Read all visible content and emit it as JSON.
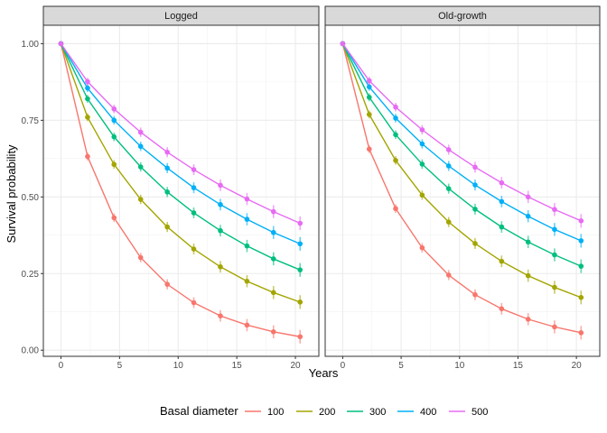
{
  "chart_data": {
    "type": "line",
    "xlabel": "Years",
    "ylabel": "Survival probability",
    "xlim": [
      -1.5,
      22
    ],
    "ylim": [
      -0.02,
      1.06
    ],
    "x_ticks": [
      0,
      5,
      10,
      15,
      20
    ],
    "x_tick_labels": [
      "0",
      "5",
      "10",
      "15",
      "20"
    ],
    "y_ticks": [
      0,
      0.25,
      0.5,
      0.75,
      1.0
    ],
    "y_tick_labels": [
      "0.00",
      "0.25",
      "0.50",
      "0.75",
      "1.00"
    ],
    "grid": true,
    "legend": {
      "title": "Basal diameter",
      "position": "bottom",
      "entries": [
        "100",
        "200",
        "300",
        "400",
        "500"
      ]
    },
    "colors": [
      "#F8766D",
      "#A3A500",
      "#00BF7D",
      "#00B0F6",
      "#E76BF3"
    ],
    "x": [
      0,
      2.27,
      4.53,
      6.8,
      9.07,
      11.33,
      13.6,
      15.87,
      18.13,
      20.4
    ],
    "panels": [
      {
        "title": "Logged",
        "series": [
          {
            "name": "100",
            "values": [
              1.0,
              0.632,
              0.432,
              0.302,
              0.215,
              0.155,
              0.112,
              0.082,
              0.06,
              0.044
            ]
          },
          {
            "name": "200",
            "values": [
              1.0,
              0.76,
              0.606,
              0.492,
              0.402,
              0.33,
              0.272,
              0.225,
              0.188,
              0.157
            ]
          },
          {
            "name": "300",
            "values": [
              1.0,
              0.82,
              0.696,
              0.598,
              0.516,
              0.448,
              0.39,
              0.34,
              0.298,
              0.262
            ]
          },
          {
            "name": "400",
            "values": [
              1.0,
              0.855,
              0.75,
              0.665,
              0.594,
              0.53,
              0.475,
              0.427,
              0.384,
              0.347
            ]
          },
          {
            "name": "500",
            "values": [
              1.0,
              0.876,
              0.787,
              0.711,
              0.646,
              0.589,
              0.538,
              0.493,
              0.452,
              0.414
            ]
          }
        ]
      },
      {
        "title": "Old-growth",
        "series": [
          {
            "name": "100",
            "values": [
              1.0,
              0.656,
              0.462,
              0.334,
              0.245,
              0.181,
              0.135,
              0.101,
              0.076,
              0.057
            ]
          },
          {
            "name": "200",
            "values": [
              1.0,
              0.769,
              0.619,
              0.506,
              0.418,
              0.348,
              0.29,
              0.243,
              0.205,
              0.172
            ]
          },
          {
            "name": "300",
            "values": [
              1.0,
              0.825,
              0.703,
              0.607,
              0.527,
              0.46,
              0.402,
              0.353,
              0.311,
              0.274
            ]
          },
          {
            "name": "400",
            "values": [
              1.0,
              0.859,
              0.757,
              0.673,
              0.601,
              0.539,
              0.485,
              0.437,
              0.394,
              0.357
            ]
          },
          {
            "name": "500",
            "values": [
              1.0,
              0.879,
              0.793,
              0.719,
              0.654,
              0.597,
              0.546,
              0.5,
              0.459,
              0.422
            ]
          }
        ]
      }
    ]
  }
}
